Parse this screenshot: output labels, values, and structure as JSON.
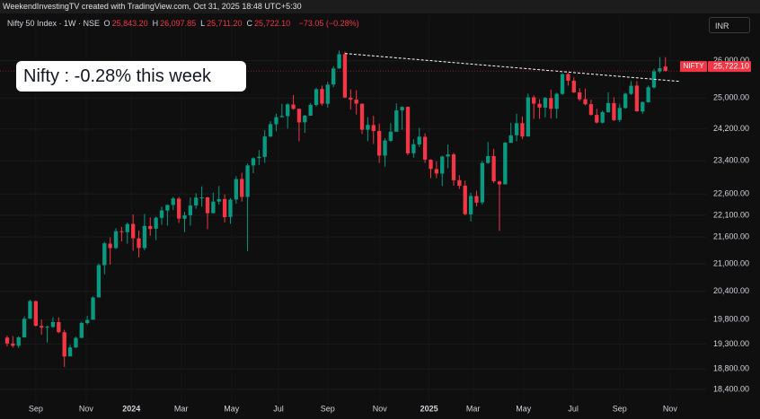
{
  "header": {
    "credit": "WeekendInvestingTV created with TradingView.com, Oct 31, 2025 18:48 UTC+5:30"
  },
  "toolbar": {
    "currency": "INR"
  },
  "chart_data": {
    "type": "candlestick",
    "symbol": "Nifty 50 Index · 1W · NSE",
    "ohlc_legend": [
      {
        "key": "O",
        "value": "25,843.20"
      },
      {
        "key": "H",
        "value": "26,097.85"
      },
      {
        "key": "L",
        "value": "25,711.20"
      },
      {
        "key": "C",
        "value": "25,722.10"
      }
    ],
    "change": "−73.05 (−0.28%)",
    "annotation": "Nifty : -0.28% this week",
    "price_label": {
      "symbol": "NIFTY",
      "value": "25,722.10"
    },
    "up_color": "#089981",
    "down_color": "#f23645",
    "log_scale": true,
    "grid": true,
    "open": [
      19430,
      19310,
      19265,
      19435,
      19820,
      20190,
      19670,
      19640,
      19650,
      19750,
      19540,
      19050,
      19230,
      19425,
      19730,
      19800,
      20270,
      20970,
      21450,
      21350,
      21730,
      21710,
      21900,
      21570,
      21350,
      21850,
      21790,
      22040,
      22210,
      22340,
      22490,
      22020,
      22100,
      22330,
      22510,
      22520,
      22150,
      22420,
      22480,
      22060,
      22470,
      22960,
      22530,
      23290,
      23470,
      23500,
      24010,
      24320,
      24500,
      24530,
      24830,
      24720,
      24370,
      24540,
      24820,
      25240,
      24850,
      25360,
      25790,
      26180,
      25010,
      24960,
      24850,
      24180,
      24300,
      24150,
      23530,
      23900,
      24130,
      24680,
      24770,
      23590,
      23810,
      24000,
      23430,
      23200,
      23090,
      23510,
      23560,
      22930,
      22800,
      22120,
      22550,
      22400,
      23350,
      23520,
      22900,
      22830,
      23850,
      24040,
      24350,
      24010,
      25020,
      24850,
      24750,
      25000,
      24720,
      25110,
      25640,
      25460,
      25150,
      24970,
      24840,
      24560,
      24360,
      24630,
      24870,
      24430,
      24740,
      25110,
      25330,
      24650,
      24890,
      25280,
      25710,
      25843.2
    ],
    "high": [
      19470,
      19460,
      19460,
      19870,
      20220,
      20200,
      19800,
      19680,
      19850,
      19850,
      19590,
      19280,
      19450,
      19760,
      19880,
      20290,
      21010,
      21490,
      21590,
      21800,
      21830,
      21930,
      22120,
      21750,
      22130,
      22050,
      22070,
      22300,
      22350,
      22530,
      22530,
      22180,
      22520,
      22620,
      22780,
      22530,
      22630,
      22790,
      22590,
      22500,
      23030,
      23110,
      23340,
      23490,
      23670,
      24170,
      24400,
      24590,
      24850,
      24860,
      25080,
      24720,
      24560,
      24870,
      25270,
      25330,
      25430,
      25850,
      26280,
      26250,
      25230,
      25210,
      24860,
      24500,
      24540,
      24340,
      23960,
      24350,
      24860,
      24780,
      24780,
      23940,
      24230,
      24090,
      23440,
      23390,
      23530,
      23810,
      23600,
      23050,
      22920,
      22630,
      22680,
      23400,
      23870,
      23700,
      22920,
      23870,
      24360,
      24590,
      24520,
      25120,
      25070,
      24970,
      25030,
      25220,
      25140,
      25660,
      25670,
      25550,
      25260,
      25250,
      24960,
      24720,
      24670,
      25150,
      25020,
      24850,
      25140,
      25450,
      25450,
      24910,
      25330,
      25780,
      26100,
      26097.85
    ],
    "low": [
      19250,
      19230,
      19220,
      19430,
      19820,
      19660,
      19490,
      19330,
      19630,
      19520,
      18840,
      19050,
      19220,
      19420,
      19700,
      19800,
      20270,
      20770,
      20980,
      21330,
      21500,
      21450,
      21290,
      21140,
      21300,
      21630,
      21530,
      21880,
      21860,
      22220,
      21920,
      21710,
      21860,
      22250,
      22300,
      21780,
      22140,
      22350,
      21930,
      21900,
      22370,
      22420,
      21280,
      23100,
      23300,
      23350,
      23990,
      24140,
      24500,
      24210,
      24690,
      23890,
      24100,
      24540,
      24780,
      24800,
      24750,
      25290,
      25790,
      25000,
      24700,
      24570,
      24070,
      23890,
      23820,
      23350,
      23260,
      23870,
      24130,
      24180,
      23540,
      23480,
      23750,
      23350,
      22980,
      22980,
      22790,
      23220,
      22800,
      22720,
      22100,
      21960,
      22310,
      22350,
      23330,
      22860,
      21740,
      22830,
      23850,
      23890,
      23940,
      24010,
      24460,
      24460,
      24500,
      24470,
      24470,
      25080,
      25330,
      25130,
      24920,
      24810,
      24540,
      24340,
      24340,
      24620,
      24400,
      24380,
      24720,
      25080,
      24640,
      24590,
      24880,
      25250,
      25660,
      25711.2
    ],
    "close": [
      19310,
      19265,
      19435,
      19820,
      20192,
      19674,
      19638,
      19654,
      19751,
      19542,
      19047,
      19230,
      19425,
      19732,
      19795,
      20268,
      20970,
      21457,
      21349,
      21731,
      21711,
      21895,
      21572,
      21353,
      21854,
      21783,
      22041,
      22213,
      22339,
      22494,
      22023,
      22097,
      22327,
      22514,
      22519,
      22147,
      22420,
      22476,
      22055,
      22466,
      22957,
      22531,
      23290,
      23465,
      23501,
      24010,
      24323,
      24502,
      24531,
      24834,
      24718,
      24367,
      24541,
      24823,
      25235,
      24852,
      25356,
      25791,
      26179,
      25014,
      24964,
      24854,
      24181,
      24304,
      24148,
      23532,
      23907,
      24131,
      24677,
      24768,
      23587,
      23813,
      24005,
      23432,
      23203,
      23092,
      23508,
      23560,
      22929,
      22796,
      22125,
      22553,
      22397,
      23350,
      23519,
      22904,
      22829,
      23852,
      24039,
      24347,
      24008,
      25020,
      24853,
      24751,
      25003,
      24719,
      25112,
      25637,
      25461,
      25150,
      24968,
      24837,
      24565,
      24363,
      24631,
      24870,
      24427,
      24741,
      25114,
      25327,
      24655,
      24894,
      25285,
      25710,
      25795,
      25722.1
    ],
    "trendline": {
      "x": [
        59,
        117.6
      ],
      "y": [
        26200,
        25440
      ]
    },
    "xlim": [
      -1.25,
      122.1
    ],
    "xticks": [
      {
        "value": 5.0,
        "label": "Sep"
      },
      {
        "value": 13.8,
        "label": "Nov"
      },
      {
        "value": 21.7,
        "label": "2024"
      },
      {
        "value": 30.4,
        "label": "Mar"
      },
      {
        "value": 39.2,
        "label": "May"
      },
      {
        "value": 47.4,
        "label": "Jul"
      },
      {
        "value": 56.0,
        "label": "Sep"
      },
      {
        "value": 65.1,
        "label": "Nov"
      },
      {
        "value": 73.7,
        "label": "2025"
      },
      {
        "value": 81.4,
        "label": "Mar"
      },
      {
        "value": 90.2,
        "label": "May"
      },
      {
        "value": 98.9,
        "label": "Jul"
      },
      {
        "value": 107.0,
        "label": "Sep"
      },
      {
        "value": 115.8,
        "label": "Nov"
      }
    ],
    "ylim": [
      18090,
      27250
    ],
    "yticks": [
      {
        "value": 26000,
        "label": "26,000.00"
      },
      {
        "value": 25000,
        "label": "25,000.00"
      },
      {
        "value": 24200,
        "label": "24,200.00"
      },
      {
        "value": 23400,
        "label": "23,400.00"
      },
      {
        "value": 22600,
        "label": "22,600.00"
      },
      {
        "value": 22100,
        "label": "22,100.00"
      },
      {
        "value": 21600,
        "label": "21,600.00"
      },
      {
        "value": 21000,
        "label": "21,000.00"
      },
      {
        "value": 20400,
        "label": "20,400.00"
      },
      {
        "value": 19800,
        "label": "19,800.00"
      },
      {
        "value": 19300,
        "label": "19,300.00"
      },
      {
        "value": 18800,
        "label": "18,800.00"
      },
      {
        "value": 18400,
        "label": "18,400.00"
      }
    ]
  }
}
